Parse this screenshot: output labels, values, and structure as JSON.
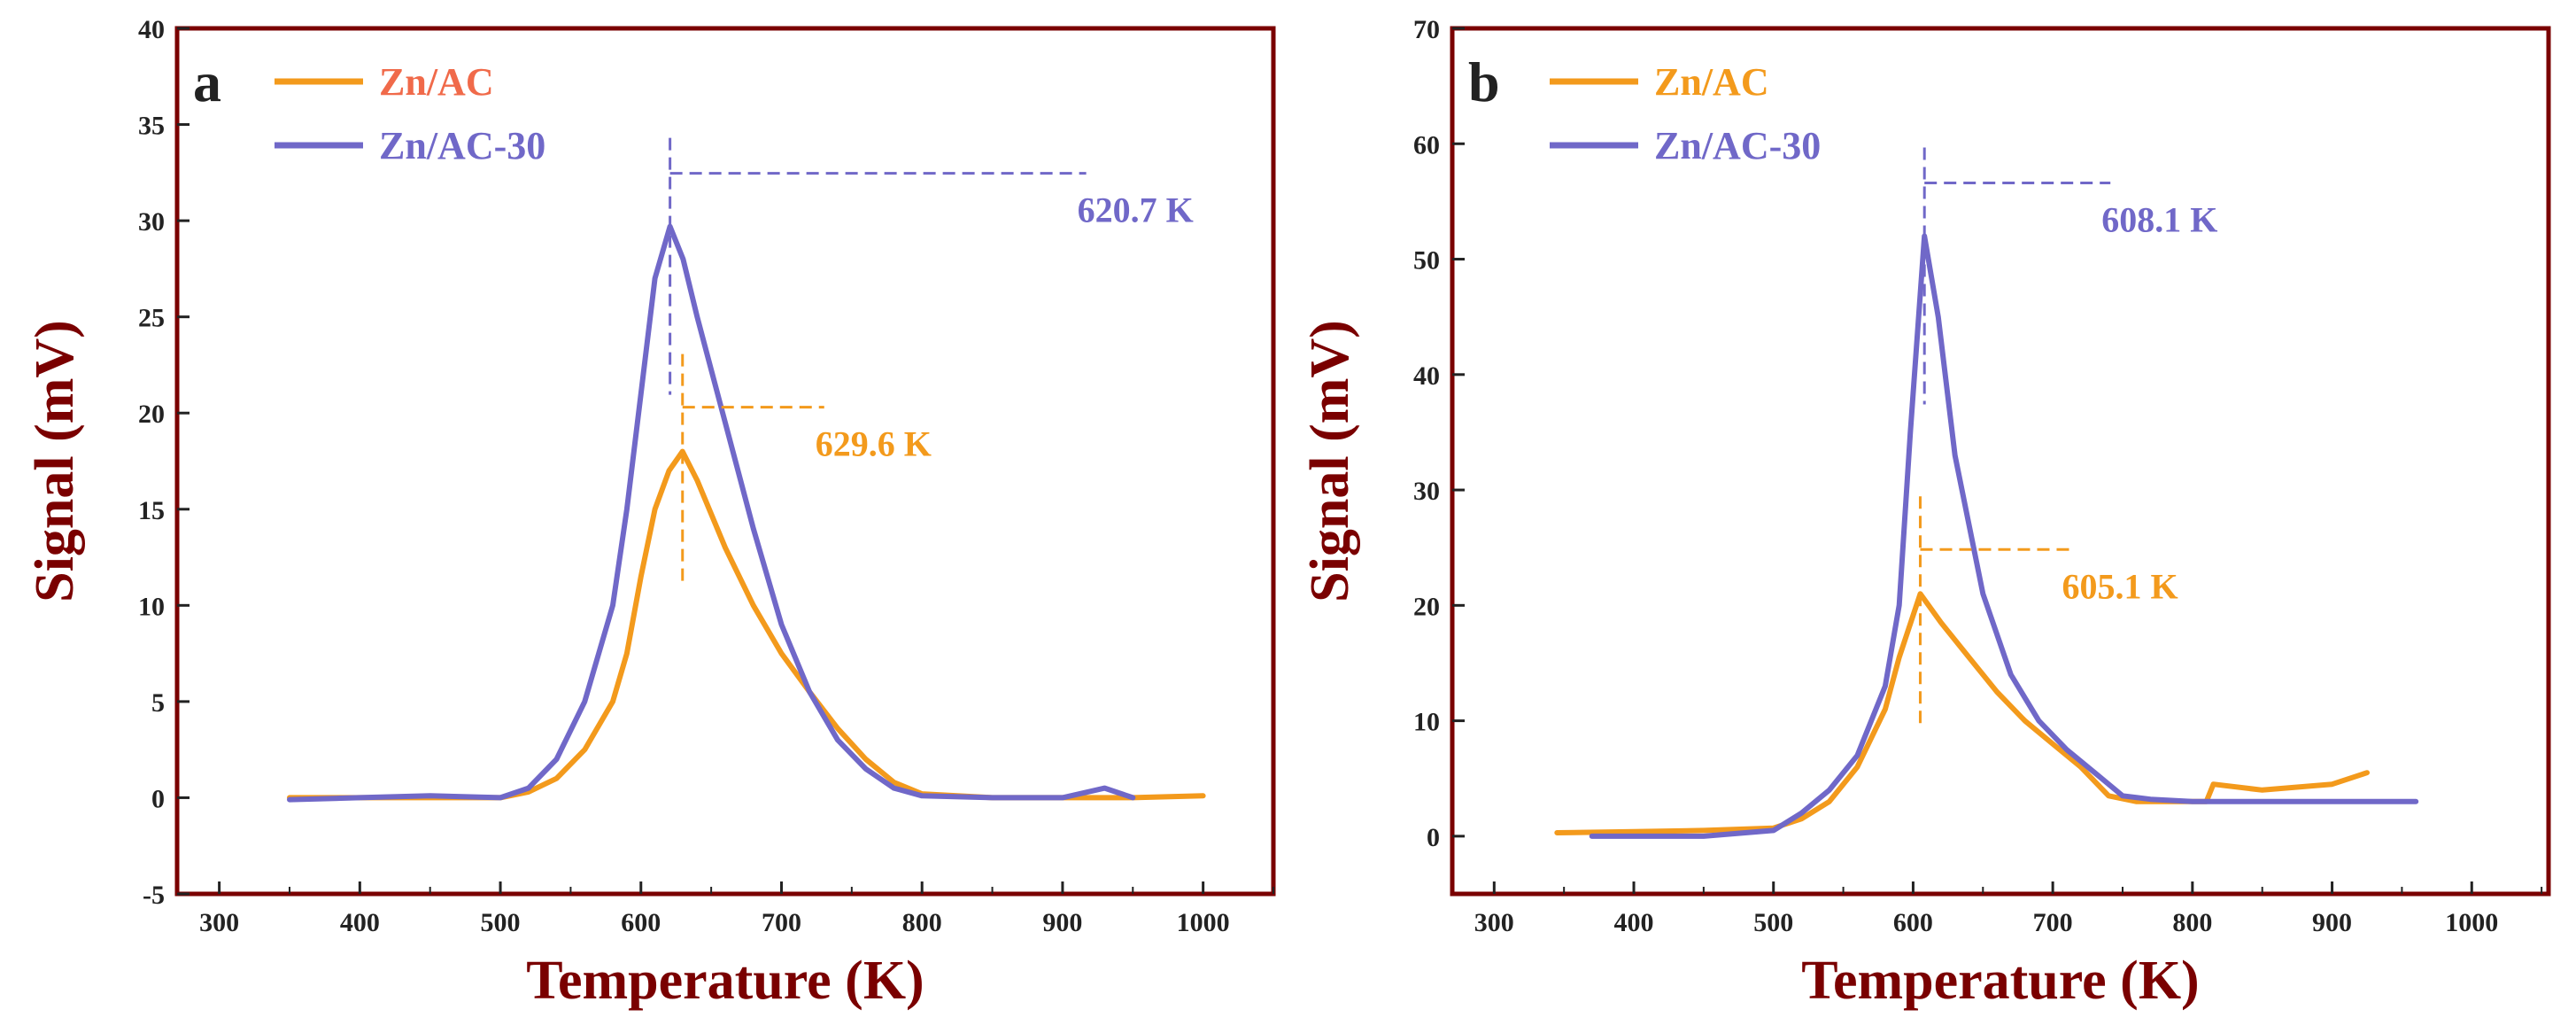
{
  "colors": {
    "frame": "#7a0000",
    "axis_title": "#7a0000",
    "zn_ac": "#f39a1c",
    "zn_ac_30": "#7068c8"
  },
  "chart_data": [
    {
      "type": "line",
      "panel_label": "a",
      "xlabel": "Temperature (K)",
      "ylabel": "Signal (mV)",
      "xlim": [
        270,
        1050
      ],
      "ylim": [
        -5,
        40
      ],
      "xticks": [
        300,
        400,
        500,
        600,
        700,
        800,
        900,
        1000
      ],
      "yticks": [
        -5,
        0,
        5,
        10,
        15,
        20,
        25,
        30,
        35,
        40
      ],
      "legend": [
        {
          "name": "Zn/AC",
          "color": "#f39a1c",
          "label_color": "#f06a4a"
        },
        {
          "name": "Zn/AC-30",
          "color": "#7068c8",
          "label_color": "#7068c8"
        }
      ],
      "series": [
        {
          "name": "Zn/AC",
          "color": "#f39a1c",
          "x": [
            350,
            400,
            450,
            500,
            520,
            540,
            560,
            580,
            590,
            600,
            610,
            620,
            629.6,
            640,
            660,
            680,
            700,
            720,
            740,
            760,
            780,
            800,
            850,
            900,
            950,
            1000
          ],
          "y": [
            0,
            0,
            0,
            0,
            0.3,
            1.0,
            2.5,
            5.0,
            7.5,
            11.5,
            15.0,
            17.0,
            18.0,
            16.5,
            13.0,
            10.0,
            7.5,
            5.5,
            3.6,
            2.0,
            0.8,
            0.2,
            0,
            0,
            0,
            0.1
          ]
        },
        {
          "name": "Zn/AC-30",
          "color": "#7068c8",
          "x": [
            350,
            400,
            450,
            500,
            520,
            540,
            560,
            580,
            590,
            600,
            610,
            620.7,
            630,
            640,
            660,
            680,
            700,
            720,
            740,
            760,
            780,
            800,
            850,
            900,
            930,
            950
          ],
          "y": [
            -0.1,
            0,
            0.1,
            0,
            0.5,
            2.0,
            5.0,
            10.0,
            15.0,
            21.0,
            27.0,
            29.7,
            28.0,
            25.0,
            19.5,
            14.0,
            9.0,
            5.5,
            3.0,
            1.5,
            0.5,
            0.1,
            0,
            0,
            0.5,
            0
          ]
        }
      ],
      "annotations": [
        {
          "text": "620.7 K",
          "series": "Zn/AC-30",
          "x": 620.7,
          "y": 29.7,
          "color": "#7068c8"
        },
        {
          "text": "629.6 K",
          "series": "Zn/AC",
          "x": 629.6,
          "y": 18.0,
          "color": "#f39a1c"
        }
      ]
    },
    {
      "type": "line",
      "panel_label": "b",
      "xlabel": "Temperature (K)",
      "ylabel": "Signal (mV)",
      "xlim": [
        270,
        1055
      ],
      "ylim": [
        -5,
        70
      ],
      "xticks": [
        300,
        400,
        500,
        600,
        700,
        800,
        900,
        1000
      ],
      "yticks": [
        0,
        10,
        20,
        30,
        40,
        50,
        60,
        70
      ],
      "legend": [
        {
          "name": "Zn/AC",
          "color": "#f39a1c",
          "label_color": "#f39a1c"
        },
        {
          "name": "Zn/AC-30",
          "color": "#7068c8",
          "label_color": "#7068c8"
        }
      ],
      "series": [
        {
          "name": "Zn/AC",
          "color": "#f39a1c",
          "x": [
            345,
            400,
            450,
            500,
            520,
            540,
            560,
            580,
            590,
            605.1,
            620,
            640,
            660,
            680,
            700,
            720,
            740,
            760,
            780,
            800,
            810,
            815,
            850,
            900,
            925
          ],
          "y": [
            0.3,
            0.4,
            0.5,
            0.7,
            1.5,
            3.0,
            6.0,
            11.0,
            15.5,
            21.0,
            18.5,
            15.5,
            12.5,
            10.0,
            8.0,
            6.0,
            3.5,
            3.0,
            3.0,
            3.0,
            3.0,
            4.5,
            4.0,
            4.5,
            5.5
          ]
        },
        {
          "name": "Zn/AC-30",
          "color": "#7068c8",
          "x": [
            370,
            400,
            450,
            500,
            520,
            540,
            560,
            580,
            590,
            598,
            608.1,
            618,
            630,
            650,
            670,
            690,
            710,
            730,
            750,
            770,
            800,
            850,
            900,
            960
          ],
          "y": [
            0,
            0,
            0,
            0.5,
            2.0,
            4.0,
            7.0,
            13.0,
            20.0,
            35.0,
            52.0,
            45.0,
            33.0,
            21.0,
            14.0,
            10.0,
            7.5,
            5.5,
            3.5,
            3.2,
            3.0,
            3.0,
            3.0,
            3.0
          ]
        }
      ],
      "annotations": [
        {
          "text": "608.1 K",
          "series": "Zn/AC-30",
          "x": 608.1,
          "y": 52.0,
          "color": "#7068c8"
        },
        {
          "text": "605.1 K",
          "series": "Zn/AC",
          "x": 605.1,
          "y": 21.0,
          "color": "#f39a1c"
        }
      ]
    }
  ]
}
